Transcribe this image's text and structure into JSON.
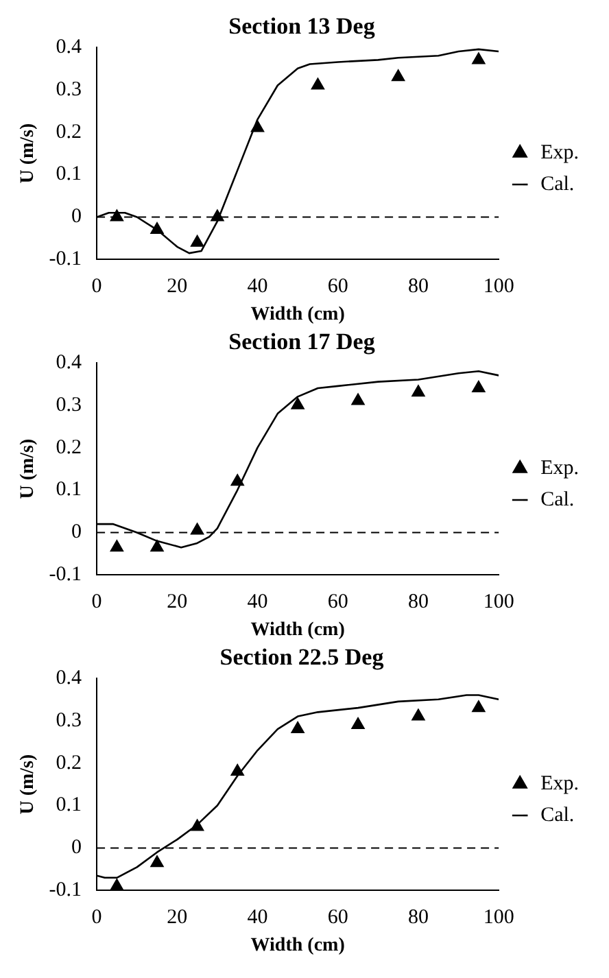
{
  "chart_data": [
    {
      "type": "line",
      "title": "Section 13 Deg",
      "xlabel": "Width (cm)",
      "ylabel": "U (m/s)",
      "xlim": [
        0,
        100
      ],
      "xticks": [
        0,
        20,
        40,
        60,
        80,
        100
      ],
      "ylim": [
        -0.1,
        0.4
      ],
      "yticks": [
        -0.1,
        0,
        0.1,
        0.2,
        0.3,
        0.4
      ],
      "grid": false,
      "legend": "right",
      "ref_lines": [
        {
          "axis": "y",
          "value": 0,
          "color": "#000000",
          "line_style": "dashed"
        }
      ],
      "series": [
        {
          "name": "Exp.",
          "type": "scatter",
          "marker": "triangle",
          "color": "#000000",
          "x": [
            5,
            15,
            25,
            30,
            40,
            55,
            75,
            95
          ],
          "values": [
            0,
            -0.03,
            -0.06,
            0,
            0.21,
            0.31,
            0.33,
            0.37
          ]
        },
        {
          "name": "Cal.",
          "type": "line",
          "marker": "none",
          "color": "#000000",
          "x": [
            0,
            3,
            7,
            10,
            15,
            20,
            23,
            26,
            30,
            35,
            40,
            45,
            50,
            53,
            60,
            70,
            75,
            85,
            90,
            95,
            100
          ],
          "values": [
            0,
            0.01,
            0.01,
            0,
            -0.03,
            -0.07,
            -0.085,
            -0.08,
            -0.01,
            0.11,
            0.23,
            0.31,
            0.35,
            0.36,
            0.365,
            0.37,
            0.375,
            0.38,
            0.39,
            0.395,
            0.39
          ]
        }
      ]
    },
    {
      "type": "line",
      "title": "Section 17 Deg",
      "xlabel": "Width (cm)",
      "ylabel": "U (m/s)",
      "xlim": [
        0,
        100
      ],
      "xticks": [
        0,
        20,
        40,
        60,
        80,
        100
      ],
      "ylim": [
        -0.1,
        0.4
      ],
      "yticks": [
        -0.1,
        0,
        0.1,
        0.2,
        0.3,
        0.4
      ],
      "grid": false,
      "legend": "right",
      "ref_lines": [
        {
          "axis": "y",
          "value": 0,
          "color": "#000000",
          "line_style": "dashed"
        }
      ],
      "series": [
        {
          "name": "Exp.",
          "type": "scatter",
          "marker": "triangle",
          "color": "#000000",
          "x": [
            5,
            15,
            25,
            35,
            50,
            65,
            80,
            95
          ],
          "values": [
            -0.035,
            -0.035,
            0.005,
            0.12,
            0.3,
            0.31,
            0.33,
            0.34
          ]
        },
        {
          "name": "Cal.",
          "type": "line",
          "marker": "none",
          "color": "#000000",
          "x": [
            0,
            4,
            10,
            15,
            21,
            25,
            28,
            30,
            35,
            40,
            45,
            50,
            55,
            60,
            70,
            80,
            90,
            95,
            100
          ],
          "values": [
            0.02,
            0.02,
            0,
            -0.02,
            -0.035,
            -0.025,
            -0.01,
            0.01,
            0.1,
            0.2,
            0.28,
            0.32,
            0.34,
            0.345,
            0.355,
            0.36,
            0.375,
            0.38,
            0.37
          ]
        }
      ]
    },
    {
      "type": "line",
      "title": "Section 22.5 Deg",
      "xlabel": "Width (cm)",
      "ylabel": "U (m/s)",
      "xlim": [
        0,
        100
      ],
      "xticks": [
        0,
        20,
        40,
        60,
        80,
        100
      ],
      "ylim": [
        -0.1,
        0.4
      ],
      "yticks": [
        -0.1,
        0,
        0.1,
        0.2,
        0.3,
        0.4
      ],
      "grid": false,
      "legend": "right",
      "ref_lines": [
        {
          "axis": "y",
          "value": 0,
          "color": "#000000",
          "line_style": "dashed"
        }
      ],
      "series": [
        {
          "name": "Exp.",
          "type": "scatter",
          "marker": "triangle",
          "color": "#000000",
          "x": [
            5,
            15,
            25,
            35,
            50,
            65,
            80,
            95
          ],
          "values": [
            -0.09,
            -0.035,
            0.05,
            0.18,
            0.28,
            0.29,
            0.31,
            0.33
          ]
        },
        {
          "name": "Cal.",
          "type": "line",
          "marker": "none",
          "color": "#000000",
          "x": [
            0,
            2,
            5,
            10,
            15,
            20,
            25,
            30,
            35,
            40,
            45,
            50,
            55,
            65,
            75,
            85,
            92,
            95,
            100
          ],
          "values": [
            -0.065,
            -0.07,
            -0.07,
            -0.045,
            -0.01,
            0.02,
            0.055,
            0.1,
            0.17,
            0.23,
            0.28,
            0.31,
            0.32,
            0.33,
            0.345,
            0.35,
            0.36,
            0.36,
            0.35
          ]
        }
      ]
    }
  ]
}
